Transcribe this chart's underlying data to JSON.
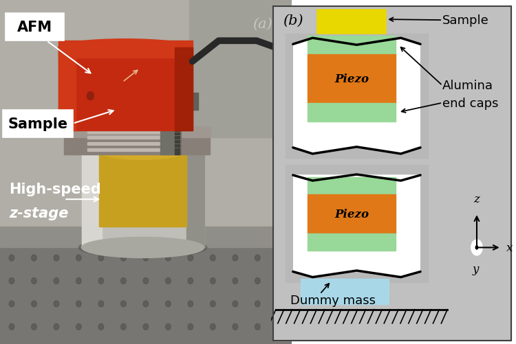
{
  "fig_width": 7.5,
  "fig_height": 5.02,
  "dpi": 100,
  "bg_color": "#ffffff",
  "panel_a_label": "(a)",
  "panel_b_label": "(b)",
  "photo_bg_top": "#b8b4a8",
  "photo_bg_bot": "#8a8880",
  "table_color": "#7a7870",
  "cylinder_main": "#c8c8c0",
  "cylinder_light": "#e0e0d8",
  "cylinder_dark": "#909088",
  "afm_color": "#c83010",
  "afm_dark": "#a82008",
  "afm_light": "#d84020",
  "sample_holder_color": "#989088",
  "label_box_bg": "#f0efe8",
  "label_text_color": "#000000",
  "arrow_color_photo": "#ffffff",
  "diagram_bg": "#c8c8c8",
  "diagram_white": "#ffffff",
  "sample_color": "#e8d800",
  "piezo_color": "#e07818",
  "alumina_color": "#98d898",
  "dummy_color": "#a8d8e8",
  "hatch_color": "#000000",
  "labels": {
    "AFM": "AFM",
    "Sample": "Sample",
    "High_speed1": "High-speed",
    "High_speed2": "z-stage",
    "Sample_b": "Sample",
    "Alumina1": "Alumina",
    "Alumina2": "end caps",
    "Piezo": "Piezo",
    "Dummy_mass": "Dummy mass",
    "z_label": "z",
    "y_label": "y",
    "x_label": "x"
  },
  "photo_label_fontsize": 15,
  "diag_label_fontsize": 13,
  "panel_label_fontsize": 15
}
